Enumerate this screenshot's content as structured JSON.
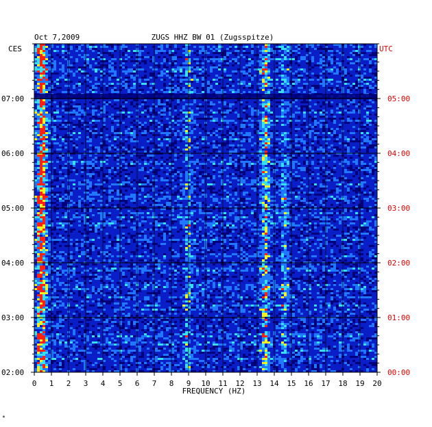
{
  "chart_data": {
    "type": "heatmap",
    "date": "Oct 7,2009",
    "title": "ZUGS HHZ BW 01 (Zugsspitze)",
    "left_timezone": "CES",
    "right_timezone": "UTC",
    "xlabel": "FREQUENCY (HZ)",
    "xlim": [
      0,
      20
    ],
    "x_ticks": [
      "0",
      "1",
      "2",
      "3",
      "4",
      "5",
      "6",
      "7",
      "8",
      "9",
      "10",
      "11",
      "12",
      "13",
      "14",
      "15",
      "16",
      "17",
      "18",
      "19",
      "20"
    ],
    "y_ticks_left": [
      "07:00",
      "06:00",
      "05:00",
      "04:00",
      "03:00",
      "02:00"
    ],
    "y_ticks_right": [
      "05:00",
      "04:00",
      "03:00",
      "02:00",
      "01:00",
      "00:00"
    ],
    "ylim_hours_ces": [
      2.0,
      8.0
    ],
    "background_color": "#0a1ec8",
    "colormap": [
      "#00007a",
      "#0a1ec8",
      "#1f78ff",
      "#37e0f0",
      "#f5f020",
      "#ff2010"
    ],
    "energy_bands_hz": [
      {
        "center": 0.35,
        "width": 0.3,
        "intensity": 0.85
      },
      {
        "center": 8.9,
        "width": 0.2,
        "intensity": 0.35
      },
      {
        "center": 13.4,
        "width": 0.25,
        "intensity": 0.55
      },
      {
        "center": 14.5,
        "width": 0.2,
        "intensity": 0.35
      }
    ]
  },
  "footnote": "*"
}
